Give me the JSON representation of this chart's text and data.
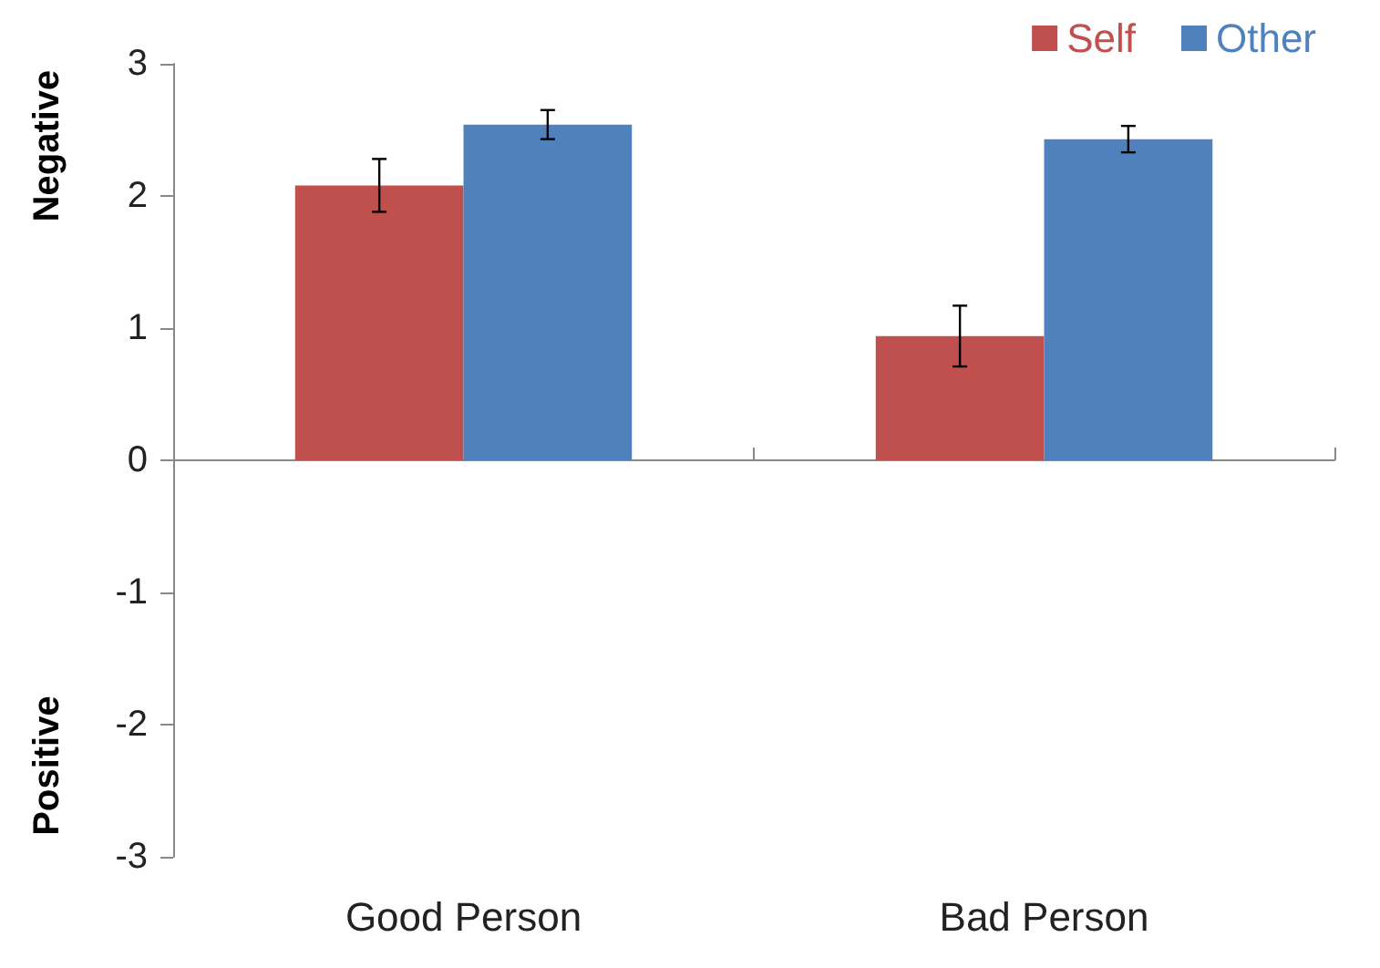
{
  "chart_data": {
    "type": "bar",
    "categories": [
      "Good Person",
      "Bad Person"
    ],
    "series": [
      {
        "name": "Self",
        "color": "#c0504d",
        "values": [
          2.08,
          0.94
        ],
        "errors": [
          0.2,
          0.23
        ]
      },
      {
        "name": "Other",
        "color": "#4f81bd",
        "values": [
          2.54,
          2.43
        ],
        "errors": [
          0.11,
          0.1
        ]
      }
    ],
    "ylim": [
      -3,
      3
    ],
    "yticks": [
      -3,
      -2,
      -1,
      0,
      1,
      2,
      3
    ],
    "legend": "top right",
    "annotations": [
      "Negative",
      "Positive"
    ]
  }
}
